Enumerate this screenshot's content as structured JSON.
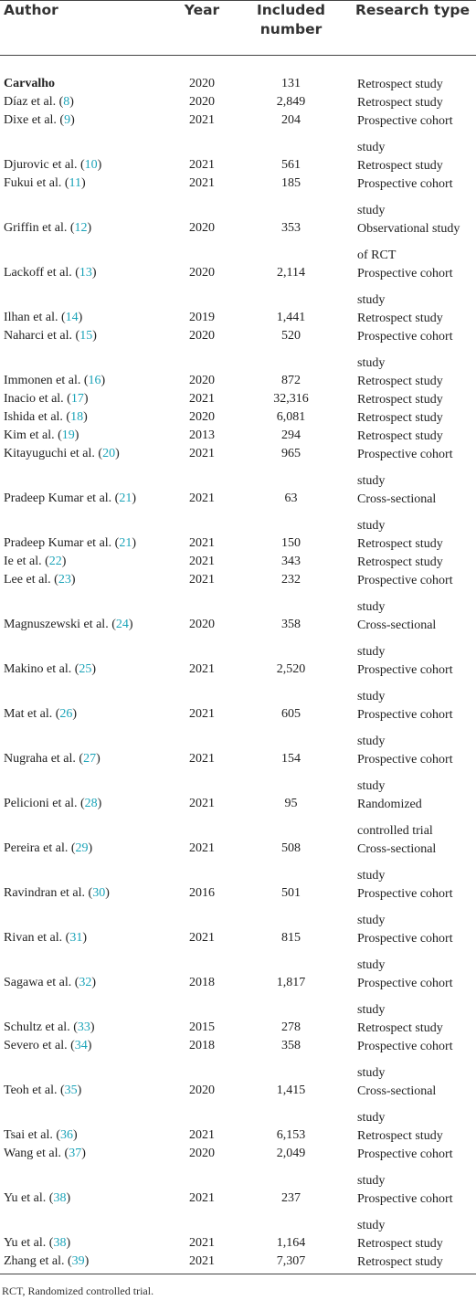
{
  "table": {
    "header": [
      "Author",
      "Year",
      "Included number",
      "Research type"
    ],
    "rows": [
      {
        "author": "Carvalho",
        "year": "2020",
        "included": "131",
        "type": "Retrospect study"
      },
      {
        "author": "Díaz et al. (",
        "ref": "8",
        "close": ")",
        "year": "2020",
        "included": "2,849",
        "type": "Retrospect study"
      },
      {
        "author": "Dixe et al. (",
        "ref": "9",
        "close": ")",
        "year": "2021",
        "included": "204",
        "type": "Prospective cohort study"
      },
      {
        "author": "Djurovic et al. (",
        "ref": "10",
        "close": ")",
        "year": "2021",
        "included": "561",
        "type": "Retrospect study"
      },
      {
        "author": "Fukui et al. (",
        "ref": "11",
        "close": ")",
        "year": "2021",
        "included": "185",
        "type": "Prospective cohort study"
      },
      {
        "author": "Griffin et al. (",
        "ref": "12",
        "close": ")",
        "year": "2020",
        "included": "353",
        "type": "Observational study of RCT"
      },
      {
        "author": "Lackoff et al. (",
        "ref": "13",
        "close": ")",
        "year": "2020",
        "included": "2,114",
        "type": "Prospective cohort study"
      },
      {
        "author": "Ilhan et al. (",
        "ref": "14",
        "close": ")",
        "year": "2019",
        "included": "1,441",
        "type": "Retrospect study"
      },
      {
        "author": "Naharci et al. (",
        "ref": "15",
        "close": ")",
        "year": "2020",
        "included": "520",
        "type": "Prospective cohort study"
      },
      {
        "author": "Immonen et al. (",
        "ref": "16",
        "close": ")",
        "year": "2020",
        "included": "872",
        "type": "Retrospect study"
      },
      {
        "author": "Inacio et al. (",
        "ref": "17",
        "close": ")",
        "year": "2021",
        "included": "32,316",
        "type": "Retrospect study"
      },
      {
        "author": "Ishida et al. (",
        "ref": "18",
        "close": ")",
        "year": "2020",
        "included": "6,081",
        "type": "Retrospect study"
      },
      {
        "author": "Kim et al. (",
        "ref": "19",
        "close": ")",
        "year": "2013",
        "included": "294",
        "type": "Retrospect study"
      },
      {
        "author": "Kitayuguchi et al. (",
        "ref": "20",
        "close": ")",
        "year": "2021",
        "included": "965",
        "type": "Prospective cohort study"
      },
      {
        "author": "Pradeep Kumar et al. (",
        "ref": "21",
        "close": ")",
        "year": "2021",
        "included": "63",
        "type": "Cross-sectional study"
      },
      {
        "author": "Pradeep Kumar et al. (",
        "ref": "21",
        "close": ")",
        "year": "2021",
        "included": "150",
        "type": "Retrospect study"
      },
      {
        "author": "Ie et al. (",
        "ref": "22",
        "close": ")",
        "year": "2021",
        "included": "343",
        "type": "Retrospect study"
      },
      {
        "author": "Lee et al. (",
        "ref": "23",
        "close": ")",
        "year": "2021",
        "included": "232",
        "type": "Prospective cohort study"
      },
      {
        "author": "Magnuszewski et al. (",
        "ref": "24",
        "close": ")",
        "year": "2020",
        "included": "358",
        "type": "Cross-sectional study"
      },
      {
        "author": "Makino et al. (",
        "ref": "25",
        "close": ")",
        "year": "2021",
        "included": "2,520",
        "type": "Prospective cohort study"
      },
      {
        "author": "Mat et al. (",
        "ref": "26",
        "close": ")",
        "year": "2021",
        "included": "605",
        "type": "Prospective cohort study"
      },
      {
        "author": "Nugraha et al. (",
        "ref": "27",
        "close": ")",
        "year": "2021",
        "included": "154",
        "type": "Prospective cohort study"
      },
      {
        "author": "Pelicioni et al. (",
        "ref": "28",
        "close": ")",
        "year": "2021",
        "included": "95",
        "type": "Randomized controlled trial"
      },
      {
        "author": "Pereira et al. (",
        "ref": "29",
        "close": ")",
        "year": "2021",
        "included": "508",
        "type": "Cross-sectional study"
      },
      {
        "author": "Ravindran et al. (",
        "ref": "30",
        "close": ")",
        "year": "2016",
        "included": "501",
        "type": "Prospective cohort study"
      },
      {
        "author": "Rivan et al. (",
        "ref": "31",
        "close": ")",
        "year": "2021",
        "included": "815",
        "type": "Prospective cohort study"
      },
      {
        "author": "Sagawa et al. (",
        "ref": "32",
        "close": ")",
        "year": "2018",
        "included": "1,817",
        "type": "Prospective cohort study"
      },
      {
        "author": "Schultz et al. (",
        "ref": "33",
        "close": ")",
        "year": "2015",
        "included": "278",
        "type": "Retrospect study"
      },
      {
        "author": "Severo et al. (",
        "ref": "34",
        "close": ")",
        "year": "2018",
        "included": "358",
        "type": "Prospective cohort study"
      },
      {
        "author": "Teoh et al. (",
        "ref": "35",
        "close": ")",
        "year": "2020",
        "included": "1,415",
        "type": "Cross-sectional study"
      },
      {
        "author": "Tsai et al. (",
        "ref": "36",
        "close": ")",
        "year": "2021",
        "included": "6,153",
        "type": "Retrospect study"
      },
      {
        "author": "Wang et al. (",
        "ref": "37",
        "close": ")",
        "year": "2020",
        "included": "2,049",
        "type": "Prospective cohort study"
      },
      {
        "author": "Yu et al. (",
        "ref": "38",
        "close": ")",
        "year": "2021",
        "included": "237",
        "type": "Prospective cohort study"
      },
      {
        "author": "Yu et al. (",
        "ref": "38",
        "close": ")",
        "year": "2021",
        "included": "1,164",
        "type": "Retrospect study"
      },
      {
        "author": "Zhang et al. (",
        "ref": "39",
        "close": ")",
        "year": "2021",
        "included": "7,307",
        "type": "Retrospect study"
      }
    ],
    "footnote": "RCT, Randomized controlled trial."
  }
}
